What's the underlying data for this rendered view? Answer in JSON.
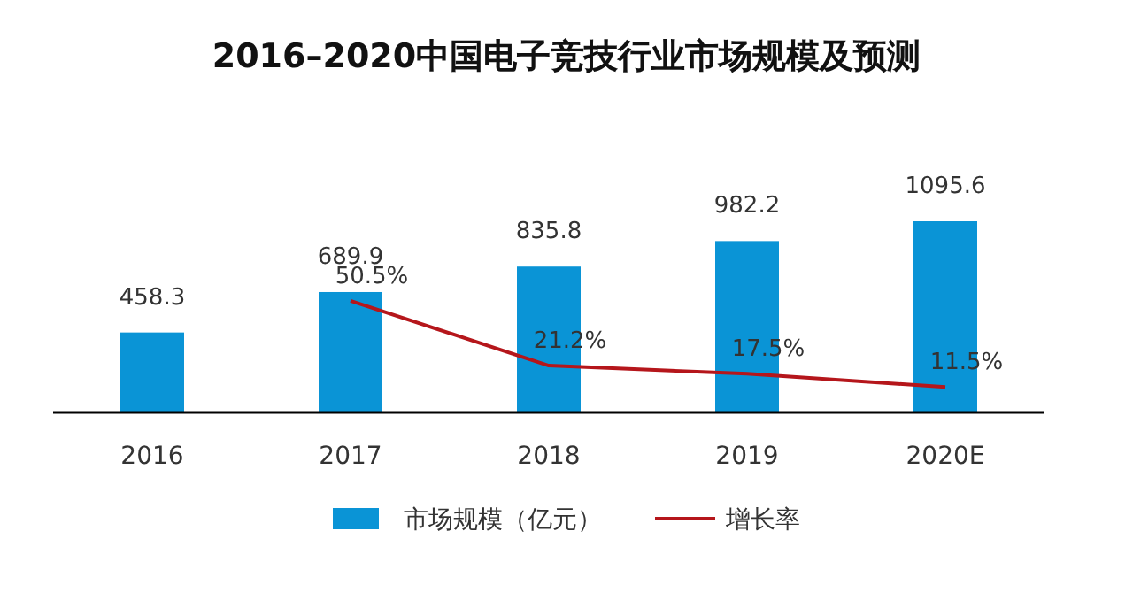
{
  "chart_data": {
    "type": "bar",
    "title": "2016–2020中国电子竞技行业市场规模及预测",
    "categories": [
      "2016",
      "2017",
      "2018",
      "2019",
      "2020E"
    ],
    "series": [
      {
        "name": "市场规模（亿元）",
        "color": "#0a94d6",
        "values": [
          458.3,
          689.9,
          835.8,
          982.2,
          1095.6
        ],
        "data_labels": true
      },
      {
        "name": "增长率",
        "type": "line",
        "axis": "y2",
        "color": "#b5161b",
        "values": [
          null,
          50.5,
          21.2,
          17.5,
          11.5
        ],
        "value_labels": [
          null,
          "50.5%",
          "21.2%",
          "17.5%",
          "11.5%"
        ]
      }
    ],
    "legend": "bottom"
  }
}
